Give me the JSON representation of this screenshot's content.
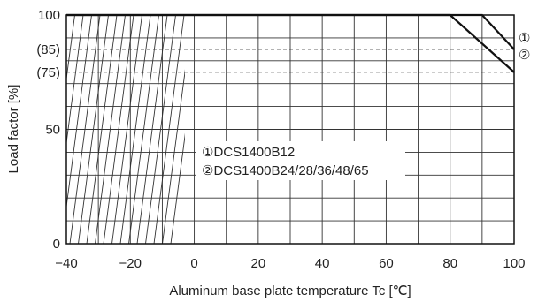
{
  "chart_data": {
    "type": "line",
    "title": "",
    "xlabel": "Aluminum base plate temperature Tc [℃]",
    "ylabel": "Load factor [%]",
    "xlim": [
      -40,
      100
    ],
    "ylim": [
      0,
      100
    ],
    "grid": true,
    "x_ticks": [
      -40,
      -20,
      0,
      20,
      40,
      60,
      80,
      100
    ],
    "x_tick_labels": [
      "−40",
      "−20",
      "0",
      "20",
      "40",
      "60",
      "80",
      "100"
    ],
    "y_ticks": [
      0,
      50,
      75,
      85,
      100
    ],
    "y_tick_labels": [
      "0",
      "50",
      "(75)",
      "(85)",
      "100"
    ],
    "hatched_region": {
      "x_range": [
        -40,
        -10
      ]
    },
    "reference_lines": [
      85,
      75
    ],
    "series": [
      {
        "name": "①",
        "x": [
          -40,
          90,
          100
        ],
        "y": [
          100,
          100,
          85
        ]
      },
      {
        "name": "②",
        "x": [
          -40,
          80,
          100
        ],
        "y": [
          100,
          100,
          75
        ]
      }
    ],
    "annotation": {
      "line1": "①DCS1400B12",
      "line2": "②DCS1400B24/28/36/48/65"
    }
  }
}
